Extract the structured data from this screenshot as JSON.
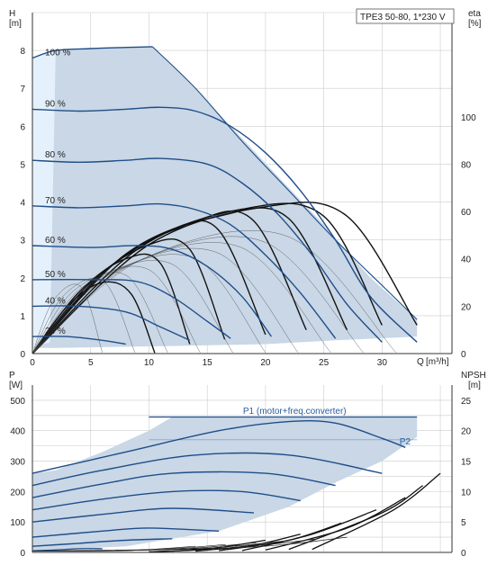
{
  "chart_data": [
    {
      "type": "line",
      "title": "TPE3 50-80, 1*230 V",
      "y_label": "H",
      "y_unit": "[m]",
      "y2_label": "eta",
      "y2_unit": "[%]",
      "x_label": "Q",
      "x_unit": "[m³/h]",
      "xlim": [
        0,
        36
      ],
      "ylim": [
        0,
        9
      ],
      "y2lim": [
        0,
        144
      ],
      "x_ticks": [
        0,
        5,
        10,
        15,
        20,
        25,
        30
      ],
      "y_ticks": [
        0,
        1,
        2,
        3,
        4,
        5,
        6,
        7,
        8
      ],
      "y2_ticks": [
        0,
        20,
        40,
        60,
        80,
        100
      ],
      "grid": true,
      "colors": {
        "curve": "#1f4e89",
        "fill": "#c9d7e6",
        "fill_light": "#e4f0fb",
        "eff": "#111111",
        "grid": "#cccccc"
      },
      "series": [
        {
          "name": "100 %",
          "points": [
            [
              0,
              7.8
            ],
            [
              2,
              8.0
            ],
            [
              5,
              8.05
            ],
            [
              8,
              8.08
            ],
            [
              10.3,
              8.1
            ]
          ]
        },
        {
          "name": "90 %",
          "points": [
            [
              0,
              6.45
            ],
            [
              4,
              6.4
            ],
            [
              8,
              6.45
            ],
            [
              11,
              6.5
            ],
            [
              14,
              6.4
            ],
            [
              17,
              6.0
            ],
            [
              20,
              5.3
            ],
            [
              23,
              4.3
            ],
            [
              26,
              3.0
            ],
            [
              29,
              1.5
            ],
            [
              33,
              0.3
            ]
          ]
        },
        {
          "name": "80 %",
          "points": [
            [
              0,
              5.1
            ],
            [
              4,
              5.05
            ],
            [
              8,
              5.1
            ],
            [
              11,
              5.15
            ],
            [
              15,
              5.0
            ],
            [
              18,
              4.5
            ],
            [
              21,
              3.7
            ],
            [
              24,
              2.6
            ],
            [
              27,
              1.3
            ],
            [
              30,
              0.3
            ]
          ]
        },
        {
          "name": "70 %",
          "points": [
            [
              0,
              3.9
            ],
            [
              4,
              3.85
            ],
            [
              8,
              3.9
            ],
            [
              11,
              3.95
            ],
            [
              14,
              3.8
            ],
            [
              17,
              3.4
            ],
            [
              20,
              2.6
            ],
            [
              23,
              1.6
            ],
            [
              26,
              0.4
            ]
          ]
        },
        {
          "name": "60 %",
          "points": [
            [
              0,
              2.85
            ],
            [
              5,
              2.8
            ],
            [
              9,
              2.85
            ],
            [
              12,
              2.75
            ],
            [
              15,
              2.3
            ],
            [
              18,
              1.5
            ],
            [
              20.5,
              0.45
            ]
          ]
        },
        {
          "name": "50 %",
          "points": [
            [
              0,
              1.95
            ],
            [
              5,
              1.95
            ],
            [
              9,
              1.9
            ],
            [
              12,
              1.5
            ],
            [
              15,
              0.85
            ],
            [
              17,
              0.4
            ]
          ]
        },
        {
          "name": "40 %",
          "points": [
            [
              0,
              1.25
            ],
            [
              4,
              1.25
            ],
            [
              8,
              1.1
            ],
            [
              11,
              0.7
            ],
            [
              13.5,
              0.35
            ]
          ]
        },
        {
          "name": "24 %",
          "points": [
            [
              0,
              0.45
            ],
            [
              3,
              0.45
            ],
            [
              6,
              0.35
            ],
            [
              8,
              0.25
            ]
          ]
        }
      ],
      "efficiency_curves": [
        [
          [
            0,
            0
          ],
          [
            3,
            20
          ],
          [
            6,
            30
          ],
          [
            8.5,
            25
          ],
          [
            10.5,
            0.3
          ]
        ],
        [
          [
            0,
            0
          ],
          [
            4,
            26
          ],
          [
            8,
            40
          ],
          [
            11,
            38
          ],
          [
            13.5,
            4
          ]
        ],
        [
          [
            0,
            0
          ],
          [
            5,
            30
          ],
          [
            10,
            46
          ],
          [
            13.5,
            44
          ],
          [
            16.5,
            6
          ]
        ],
        [
          [
            0,
            0
          ],
          [
            6,
            34
          ],
          [
            12,
            52
          ],
          [
            16,
            52
          ],
          [
            20,
            8
          ]
        ],
        [
          [
            0,
            0
          ],
          [
            7,
            38
          ],
          [
            14,
            56
          ],
          [
            19,
            56
          ],
          [
            23.5,
            10
          ]
        ],
        [
          [
            0,
            0
          ],
          [
            8,
            42
          ],
          [
            16,
            58
          ],
          [
            22,
            57
          ],
          [
            27,
            10
          ]
        ],
        [
          [
            0,
            0
          ],
          [
            9,
            44
          ],
          [
            18,
            61
          ],
          [
            25,
            58
          ],
          [
            30,
            12
          ]
        ],
        [
          [
            0,
            0
          ],
          [
            10,
            46
          ],
          [
            20,
            62
          ],
          [
            27,
            58
          ],
          [
            33,
            12
          ]
        ]
      ]
    },
    {
      "type": "line",
      "y_label": "P",
      "y_unit": "[W]",
      "y2_label": "NPSH",
      "y2_unit": "[m]",
      "xlim": [
        0,
        36
      ],
      "ylim": [
        0,
        550
      ],
      "y2lim": [
        0,
        27.5
      ],
      "y_ticks": [
        0,
        100,
        200,
        300,
        400,
        500
      ],
      "y2_ticks": [
        0,
        5,
        10,
        15,
        20,
        25
      ],
      "grid": true,
      "annotations": [
        {
          "text": "P1 (motor+freq.converter)",
          "x": 22.5,
          "y": 455
        },
        {
          "text": "P2",
          "x": 31.5,
          "y": 355
        }
      ],
      "p1_curves": [
        [
          [
            0,
            5
          ],
          [
            2,
            8
          ],
          [
            4,
            12
          ],
          [
            6,
            12
          ]
        ],
        [
          [
            0,
            20
          ],
          [
            4,
            30
          ],
          [
            8,
            40
          ],
          [
            12,
            45
          ]
        ],
        [
          [
            0,
            50
          ],
          [
            6,
            70
          ],
          [
            10,
            80
          ],
          [
            16,
            70
          ]
        ],
        [
          [
            0,
            100
          ],
          [
            6,
            125
          ],
          [
            12,
            145
          ],
          [
            19,
            130
          ]
        ],
        [
          [
            0,
            140
          ],
          [
            6,
            175
          ],
          [
            12,
            200
          ],
          [
            18,
            200
          ],
          [
            23,
            170
          ]
        ],
        [
          [
            0,
            180
          ],
          [
            6,
            225
          ],
          [
            12,
            260
          ],
          [
            20,
            260
          ],
          [
            26,
            220
          ]
        ],
        [
          [
            0,
            220
          ],
          [
            6,
            270
          ],
          [
            14,
            320
          ],
          [
            22,
            320
          ],
          [
            30,
            260
          ]
        ],
        [
          [
            0,
            260
          ],
          [
            8,
            330
          ],
          [
            16,
            400
          ],
          [
            22,
            430
          ],
          [
            26,
            425
          ],
          [
            30,
            375
          ],
          [
            32,
            345
          ]
        ]
      ],
      "npsh_curves": [
        [
          [
            10,
            0.1
          ],
          [
            14,
            0.4
          ],
          [
            16,
            0.8
          ]
        ],
        [
          [
            12,
            0.2
          ],
          [
            16,
            0.8
          ],
          [
            20,
            2.0
          ]
        ],
        [
          [
            14,
            0.2
          ],
          [
            19,
            1.2
          ],
          [
            23,
            3.0
          ]
        ],
        [
          [
            16,
            0.3
          ],
          [
            22,
            2.0
          ],
          [
            26.5,
            4.8
          ]
        ],
        [
          [
            18,
            0.3
          ],
          [
            24,
            3.0
          ],
          [
            29.5,
            7.0
          ]
        ],
        [
          [
            20,
            0.4
          ],
          [
            27,
            4.0
          ],
          [
            32,
            9.0
          ]
        ],
        [
          [
            22,
            0.5
          ],
          [
            30,
            6.5
          ],
          [
            33.5,
            11.0
          ]
        ],
        [
          [
            24,
            0.5
          ],
          [
            31,
            7.0
          ],
          [
            35,
            13.0
          ]
        ]
      ]
    }
  ]
}
